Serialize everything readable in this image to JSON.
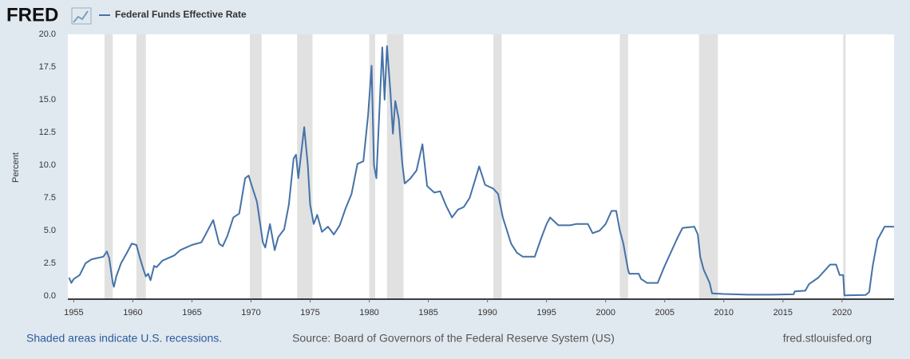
{
  "chart_data": {
    "type": "line",
    "logo": "FRED",
    "ylabel": "Percent",
    "note": "Shaded areas indicate U.S. recessions.",
    "source": "Source: Board of Governors of the Federal Reserve System (US)",
    "attribution": "fred.stlouisfed.org",
    "grid": false,
    "recession_color": "#e1e1e1",
    "recessions": [
      [
        1957.6,
        1958.3
      ],
      [
        1960.3,
        1961.1
      ],
      [
        1969.9,
        1970.9
      ],
      [
        1973.9,
        1975.2
      ],
      [
        1980.0,
        1980.5
      ],
      [
        1981.5,
        1982.9
      ],
      [
        1990.5,
        1991.2
      ],
      [
        2001.2,
        2001.9
      ],
      [
        2007.9,
        2009.5
      ],
      [
        2020.1,
        2020.3
      ]
    ],
    "xlim": [
      1954.5,
      2024.4
    ],
    "xticks": [
      1955,
      1960,
      1965,
      1970,
      1975,
      1980,
      1985,
      1990,
      1995,
      2000,
      2005,
      2010,
      2015,
      2020
    ],
    "ylim": [
      0,
      20
    ],
    "yticks": [
      {
        "value": 0,
        "label": "0.0"
      },
      {
        "value": 2.5,
        "label": "2.5"
      },
      {
        "value": 5,
        "label": "5.0"
      },
      {
        "value": 7.5,
        "label": "7.5"
      },
      {
        "value": 10,
        "label": "10.0"
      },
      {
        "value": 12.5,
        "label": "12.5"
      },
      {
        "value": 15,
        "label": "15.0"
      },
      {
        "value": 17.5,
        "label": "17.5"
      },
      {
        "value": 20,
        "label": "20.0"
      }
    ],
    "x": [
      1954.6,
      1954.8,
      1955.0,
      1955.5,
      1956.0,
      1956.5,
      1957.0,
      1957.5,
      1957.8,
      1958.0,
      1958.3,
      1958.4,
      1958.6,
      1959.0,
      1959.5,
      1959.9,
      1960.3,
      1960.6,
      1960.9,
      1961.1,
      1961.3,
      1961.5,
      1961.8,
      1962.0,
      1962.5,
      1963.0,
      1963.5,
      1964.0,
      1965.0,
      1965.8,
      1966.5,
      1966.8,
      1967.3,
      1967.6,
      1968.0,
      1968.5,
      1969.0,
      1969.5,
      1969.8,
      1970.0,
      1970.5,
      1971.0,
      1971.2,
      1971.6,
      1972.0,
      1972.3,
      1972.8,
      1973.2,
      1973.6,
      1973.8,
      1974.0,
      1974.5,
      1974.8,
      1975.0,
      1975.3,
      1975.6,
      1976.0,
      1976.5,
      1977.0,
      1977.5,
      1978.0,
      1978.5,
      1979.0,
      1979.5,
      1979.9,
      1980.2,
      1980.4,
      1980.6,
      1980.9,
      1981.1,
      1981.3,
      1981.5,
      1981.8,
      1982.0,
      1982.2,
      1982.5,
      1982.8,
      1983.0,
      1983.5,
      1984.0,
      1984.5,
      1984.9,
      1985.5,
      1986.0,
      1986.5,
      1987.0,
      1987.5,
      1988.0,
      1988.5,
      1989.0,
      1989.3,
      1989.8,
      1990.5,
      1990.9,
      1991.3,
      1992.0,
      1992.5,
      1993.0,
      1994.0,
      1994.5,
      1995.0,
      1995.3,
      1996.0,
      1997.0,
      1997.5,
      1998.5,
      1998.9,
      1999.5,
      2000.0,
      2000.5,
      2000.9,
      2001.2,
      2001.5,
      2001.9,
      2002.0,
      2002.8,
      2003.0,
      2003.5,
      2004.4,
      2005.0,
      2006.0,
      2006.5,
      2007.5,
      2007.8,
      2008.0,
      2008.3,
      2008.8,
      2009.0,
      2010.0,
      2012.0,
      2014.0,
      2015.9,
      2016.0,
      2016.9,
      2017.2,
      2018.0,
      2019.0,
      2019.5,
      2019.8,
      2020.1,
      2020.2,
      2022.0,
      2022.3,
      2022.6,
      2023.0,
      2023.6,
      2024.4
    ],
    "series": [
      {
        "name": "Federal Funds Effective Rate",
        "color": "#4572a7",
        "values": [
          1.4,
          1.0,
          1.3,
          1.6,
          2.5,
          2.8,
          2.9,
          3.0,
          3.4,
          2.9,
          1.0,
          0.7,
          1.5,
          2.5,
          3.3,
          4.0,
          3.9,
          2.9,
          2.0,
          1.5,
          1.7,
          1.2,
          2.3,
          2.2,
          2.7,
          2.9,
          3.1,
          3.5,
          3.9,
          4.1,
          5.3,
          5.8,
          4.0,
          3.8,
          4.6,
          6.0,
          6.3,
          9.0,
          9.2,
          8.6,
          7.2,
          4.1,
          3.7,
          5.5,
          3.5,
          4.5,
          5.1,
          7.0,
          10.5,
          10.8,
          9.0,
          12.9,
          10.0,
          7.0,
          5.5,
          6.2,
          4.9,
          5.3,
          4.7,
          5.4,
          6.7,
          7.8,
          10.1,
          10.3,
          13.8,
          17.6,
          10.0,
          9.0,
          15.0,
          19.0,
          15.0,
          19.1,
          15.5,
          12.4,
          14.9,
          13.5,
          10.1,
          8.6,
          9.0,
          9.6,
          11.6,
          8.4,
          7.9,
          8.0,
          6.9,
          6.0,
          6.6,
          6.8,
          7.5,
          9.0,
          9.9,
          8.5,
          8.2,
          7.8,
          6.0,
          4.0,
          3.3,
          3.0,
          3.0,
          4.3,
          5.5,
          6.0,
          5.4,
          5.4,
          5.5,
          5.5,
          4.8,
          5.0,
          5.5,
          6.5,
          6.5,
          5.0,
          4.0,
          2.0,
          1.7,
          1.7,
          1.3,
          1.0,
          1.0,
          2.3,
          4.3,
          5.2,
          5.3,
          4.7,
          3.0,
          2.0,
          1.0,
          0.2,
          0.15,
          0.1,
          0.1,
          0.13,
          0.35,
          0.4,
          0.9,
          1.4,
          2.4,
          2.4,
          1.6,
          1.6,
          0.05,
          0.08,
          0.3,
          2.3,
          4.3,
          5.3,
          5.3
        ]
      }
    ]
  }
}
